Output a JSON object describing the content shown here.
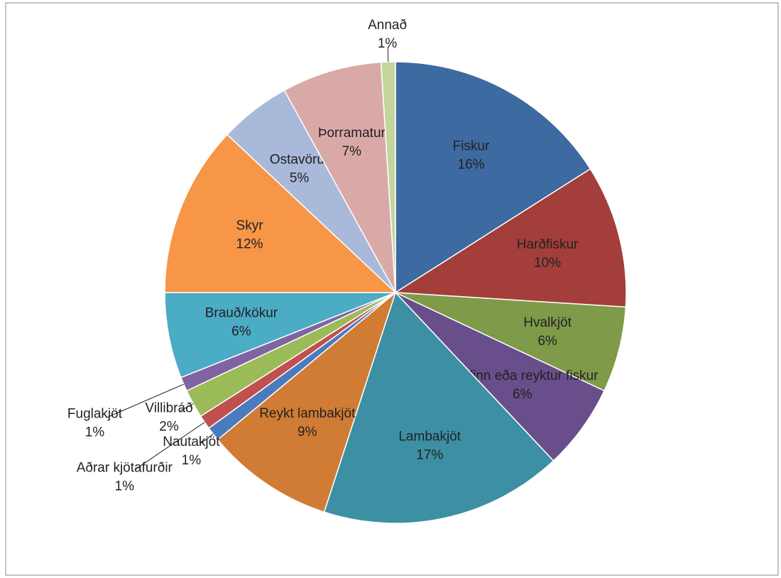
{
  "chart_data": {
    "type": "pie",
    "categories": [
      "Fiskur",
      "Harðfiskur",
      "Hvalkjöt",
      "Grafinn eða reyktur fiskur",
      "Lambakjöt",
      "Reykt lambakjöt",
      "Nautakjöt",
      "Aðrar kjötafurðir",
      "Villibráð",
      "Fuglakjöt",
      "Brauð/kökur",
      "Skyr",
      "Ostavörur",
      "Þorramatur",
      "Annað"
    ],
    "values": [
      16,
      10,
      6,
      6,
      17,
      9,
      1,
      1,
      2,
      1,
      6,
      12,
      5,
      7,
      1
    ],
    "value_labels": [
      "16%",
      "10%",
      "6%",
      "6%",
      "17%",
      "9%",
      "1%",
      "1%",
      "2%",
      "1%",
      "6%",
      "12%",
      "5%",
      "7%",
      "1%"
    ],
    "colors": [
      "#3d6aa0",
      "#a33e3b",
      "#7f9a48",
      "#684e8a",
      "#3d8fa3",
      "#d07c35",
      "#4a7bbf",
      "#c0504d",
      "#9bbb59",
      "#8064a2",
      "#4bacc6",
      "#f79646",
      "#a8b9d9",
      "#d9a9a8",
      "#c3d69b"
    ]
  }
}
